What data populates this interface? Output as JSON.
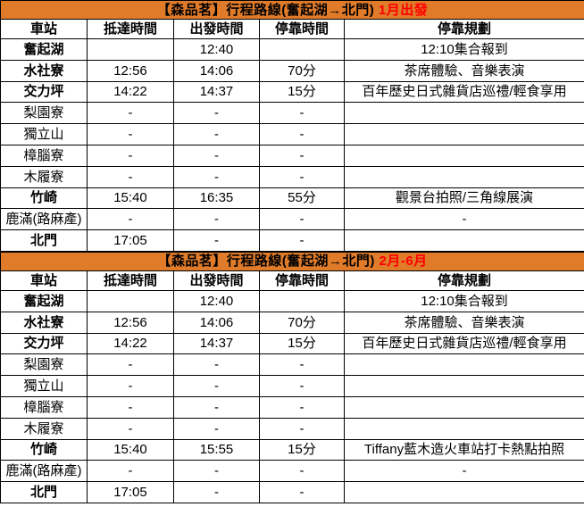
{
  "colors": {
    "header_orange": "#e07b2a",
    "row_highlight_peach": "#fadcbc",
    "accent_red": "#fe0000",
    "text_black": "#000000",
    "row_white": "#ffffff",
    "border_black": "#000000"
  },
  "columns": [
    "車站",
    "抵達時間",
    "出發時間",
    "停靠時間",
    "停靠規劃"
  ],
  "tables": [
    {
      "title_main": "【森品茗】行程路線(奮起湖→北門)",
      "title_accent": "1月出發",
      "rows": [
        {
          "cells": [
            {
              "t": "奮起湖",
              "bg": "p",
              "b": 1
            },
            {
              "t": "",
              "bg": "p"
            },
            {
              "t": "12:40",
              "bg": "p"
            },
            {
              "t": "",
              "bg": "p"
            },
            {
              "t": "12:10集合報到",
              "bg": "p",
              "r": 1,
              "a": "l"
            }
          ]
        },
        {
          "cells": [
            {
              "t": "水社寮",
              "bg": "p",
              "b": 1
            },
            {
              "t": "12:56",
              "bg": "p"
            },
            {
              "t": "14:06",
              "bg": "p"
            },
            {
              "t": "70分",
              "bg": "p"
            },
            {
              "t": "茶席體驗、音樂表演",
              "bg": "p",
              "a": "l"
            }
          ]
        },
        {
          "cells": [
            {
              "t": "交力坪",
              "bg": "p",
              "b": 1
            },
            {
              "t": "14:22",
              "bg": "p"
            },
            {
              "t": "14:37",
              "bg": "p"
            },
            {
              "t": "15分",
              "bg": "p"
            },
            {
              "t": "百年歷史日式雜貨店巡禮/輕食享用",
              "bg": "p",
              "a": "l"
            }
          ]
        },
        {
          "cells": [
            {
              "t": "梨園寮"
            },
            {
              "t": "-"
            },
            {
              "t": "-"
            },
            {
              "t": "-"
            },
            {
              "t": "",
              "a": "l"
            }
          ]
        },
        {
          "cells": [
            {
              "t": "獨立山"
            },
            {
              "t": "-"
            },
            {
              "t": "-"
            },
            {
              "t": "-"
            },
            {
              "t": "",
              "a": "l"
            }
          ]
        },
        {
          "cells": [
            {
              "t": "樟腦寮"
            },
            {
              "t": "-"
            },
            {
              "t": "-"
            },
            {
              "t": "-"
            },
            {
              "t": "",
              "a": "l"
            }
          ]
        },
        {
          "cells": [
            {
              "t": "木履寮"
            },
            {
              "t": "-"
            },
            {
              "t": "-"
            },
            {
              "t": "-"
            },
            {
              "t": "",
              "a": "l"
            }
          ]
        },
        {
          "cells": [
            {
              "t": "竹崎",
              "bg": "p",
              "b": 1
            },
            {
              "t": "15:40",
              "bg": "p"
            },
            {
              "t": "16:35",
              "bg": "p"
            },
            {
              "t": "55分",
              "bg": "p"
            },
            {
              "t": "觀景台拍照/三角線展演",
              "bg": "p",
              "a": "l"
            }
          ]
        },
        {
          "cells": [
            {
              "t": "鹿滿(路麻產)"
            },
            {
              "t": "-"
            },
            {
              "t": "-"
            },
            {
              "t": "-"
            },
            {
              "t": "-",
              "a": "l"
            }
          ]
        },
        {
          "cells": [
            {
              "t": "北門",
              "bg": "p",
              "b": 1
            },
            {
              "t": "17:05",
              "bg": "p"
            },
            {
              "t": "-"
            },
            {
              "t": "-"
            },
            {
              "t": "",
              "a": "l"
            }
          ]
        }
      ]
    },
    {
      "title_main": "【森品茗】行程路線(奮起湖→北門)",
      "title_accent": "2月-6月",
      "rows": [
        {
          "cells": [
            {
              "t": "奮起湖",
              "bg": "p",
              "b": 1
            },
            {
              "t": "",
              "bg": "p"
            },
            {
              "t": "12:40",
              "bg": "p"
            },
            {
              "t": "",
              "bg": "p"
            },
            {
              "t": "12:10集合報到",
              "bg": "p",
              "r": 1,
              "a": "l"
            }
          ]
        },
        {
          "cells": [
            {
              "t": "水社寮",
              "bg": "p",
              "b": 1
            },
            {
              "t": "12:56",
              "bg": "p"
            },
            {
              "t": "14:06",
              "bg": "p"
            },
            {
              "t": "70分",
              "bg": "p"
            },
            {
              "t": "茶席體驗、音樂表演",
              "bg": "p",
              "a": "l"
            }
          ]
        },
        {
          "cells": [
            {
              "t": "交力坪",
              "bg": "p",
              "b": 1
            },
            {
              "t": "14:22",
              "bg": "p"
            },
            {
              "t": "14:37",
              "bg": "p"
            },
            {
              "t": "15分",
              "bg": "p"
            },
            {
              "t": "百年歷史日式雜貨店巡禮/輕食享用",
              "bg": "p",
              "a": "l"
            }
          ]
        },
        {
          "cells": [
            {
              "t": "梨園寮"
            },
            {
              "t": "-"
            },
            {
              "t": "-"
            },
            {
              "t": "-"
            },
            {
              "t": "",
              "a": "l"
            }
          ]
        },
        {
          "cells": [
            {
              "t": "獨立山"
            },
            {
              "t": "-"
            },
            {
              "t": "-"
            },
            {
              "t": "-"
            },
            {
              "t": "",
              "a": "l"
            }
          ]
        },
        {
          "cells": [
            {
              "t": "樟腦寮"
            },
            {
              "t": "-"
            },
            {
              "t": "-"
            },
            {
              "t": "-"
            },
            {
              "t": "",
              "a": "l"
            }
          ]
        },
        {
          "cells": [
            {
              "t": "木履寮"
            },
            {
              "t": "-"
            },
            {
              "t": "-"
            },
            {
              "t": "-"
            },
            {
              "t": "",
              "a": "l"
            }
          ]
        },
        {
          "cells": [
            {
              "t": "竹崎",
              "bg": "p",
              "b": 1
            },
            {
              "t": "15:40",
              "bg": "p",
              "r": 1
            },
            {
              "t": "15:55",
              "bg": "p",
              "r": 1
            },
            {
              "t": "15分",
              "bg": "p",
              "r": 1
            },
            {
              "t": "Tiffany藍木造火車站打卡熱點拍照",
              "bg": "p",
              "r": 1,
              "a": "l"
            }
          ]
        },
        {
          "cells": [
            {
              "t": "鹿滿(路麻產)"
            },
            {
              "t": "-"
            },
            {
              "t": "-"
            },
            {
              "t": "-"
            },
            {
              "t": "-",
              "a": "l"
            }
          ]
        },
        {
          "cells": [
            {
              "t": "北門",
              "bg": "p",
              "b": 1
            },
            {
              "t": "17:05",
              "bg": "p"
            },
            {
              "t": "-"
            },
            {
              "t": "-"
            },
            {
              "t": "",
              "a": "l"
            }
          ]
        }
      ]
    }
  ]
}
